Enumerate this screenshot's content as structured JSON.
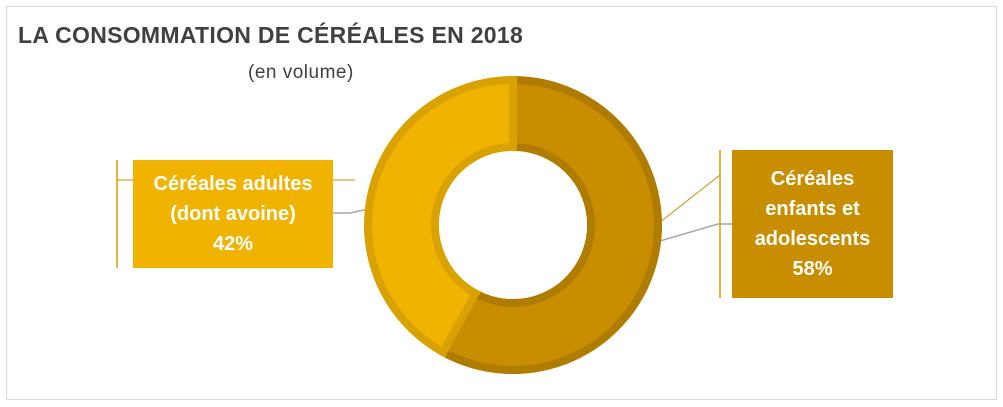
{
  "chart_data": {
    "type": "donut",
    "title": "LA CONSOMMATION DE CÉRÉALES EN 2018",
    "subtitle": "(en volume)",
    "categories": [
      "Céréales enfants et adolescents",
      "Céréales adultes (dont avoine)"
    ],
    "values": [
      58,
      42
    ],
    "value_labels": [
      "58%",
      "42%"
    ],
    "colors": [
      "#c98e00",
      "#f0b400"
    ]
  }
}
